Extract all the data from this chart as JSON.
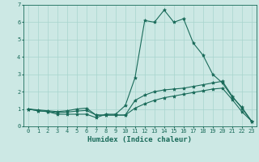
{
  "xlabel": "Humidex (Indice chaleur)",
  "bg_color": "#cce8e4",
  "line_color": "#1a6b5a",
  "x": [
    0,
    1,
    2,
    3,
    4,
    5,
    6,
    7,
    8,
    9,
    10,
    11,
    12,
    13,
    14,
    15,
    16,
    17,
    18,
    19,
    20,
    21,
    22,
    23
  ],
  "line1": [
    1.0,
    0.9,
    0.85,
    0.7,
    0.7,
    0.7,
    0.7,
    0.5,
    0.7,
    0.7,
    1.2,
    2.8,
    6.1,
    6.0,
    6.7,
    6.0,
    6.2,
    4.8,
    4.1,
    3.0,
    2.5,
    1.7,
    1.1,
    0.3
  ],
  "line2": [
    1.0,
    0.95,
    0.9,
    0.85,
    0.9,
    1.0,
    1.05,
    0.65,
    0.65,
    0.65,
    0.65,
    1.5,
    1.8,
    2.0,
    2.1,
    2.15,
    2.2,
    2.3,
    2.4,
    2.5,
    2.6,
    1.75,
    1.05,
    0.3
  ],
  "line3": [
    1.0,
    0.9,
    0.85,
    0.8,
    0.82,
    0.88,
    0.92,
    0.65,
    0.65,
    0.65,
    0.65,
    1.05,
    1.3,
    1.5,
    1.65,
    1.75,
    1.85,
    1.95,
    2.05,
    2.15,
    2.2,
    1.55,
    0.85,
    0.3
  ],
  "ylim": [
    0,
    7
  ],
  "xlim": [
    -0.5,
    23.5
  ],
  "yticks": [
    0,
    1,
    2,
    3,
    4,
    5,
    6,
    7
  ],
  "xticks": [
    0,
    1,
    2,
    3,
    4,
    5,
    6,
    7,
    8,
    9,
    10,
    11,
    12,
    13,
    14,
    15,
    16,
    17,
    18,
    19,
    20,
    21,
    22,
    23
  ],
  "grid_color": "#a8d4ce",
  "marker": "*",
  "markersize": 3,
  "linewidth": 0.8,
  "tick_fontsize": 5,
  "xlabel_fontsize": 6.5
}
